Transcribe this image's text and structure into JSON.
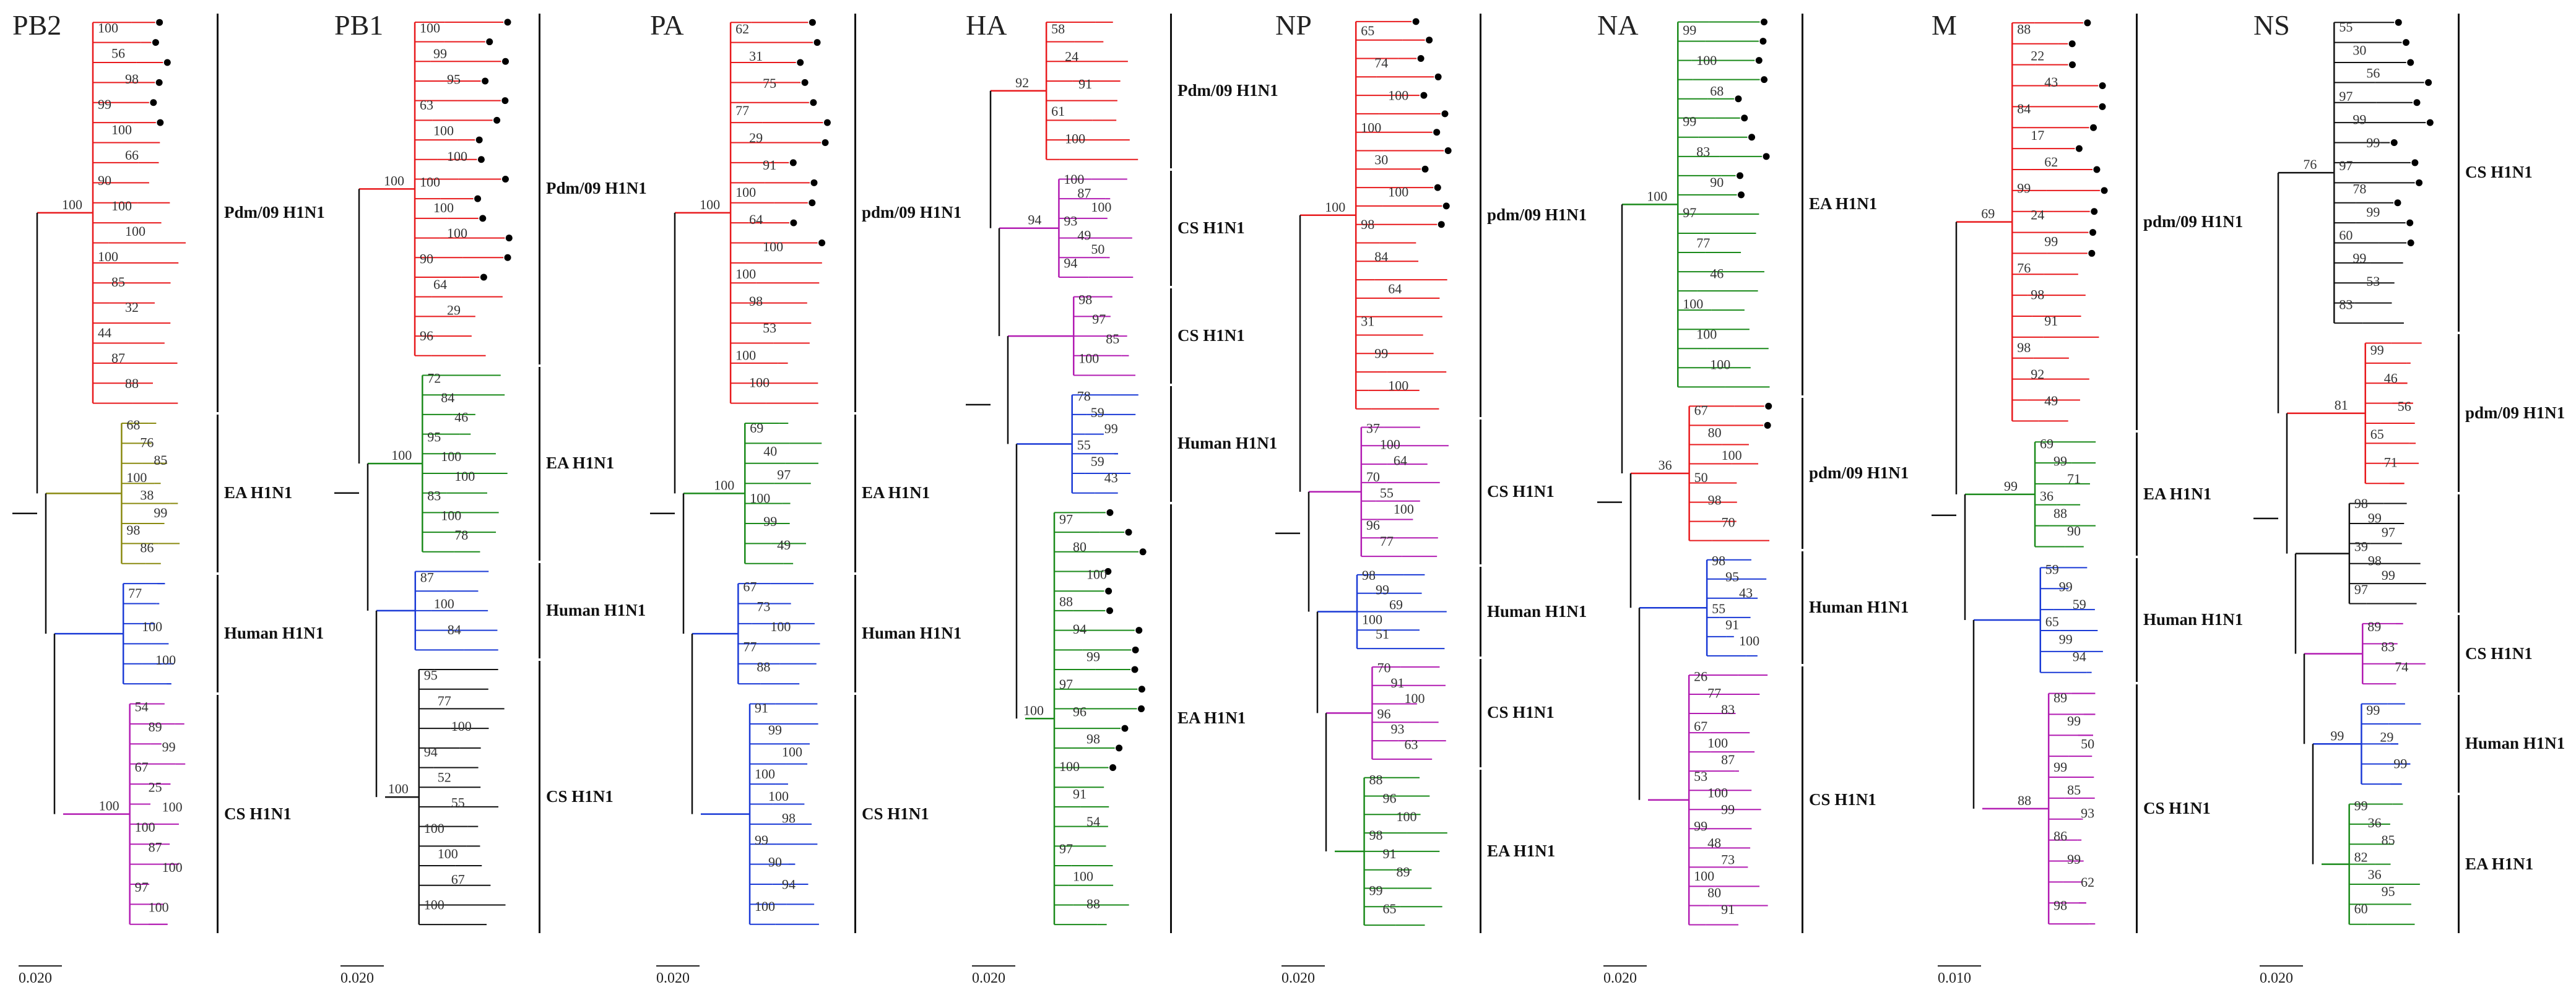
{
  "colors": {
    "pdm": "#e8191c",
    "ea": "#1a8a1a",
    "human": "#1a3ad6",
    "cs": "#b21cb2",
    "ea_alt": "#8a8a10",
    "base": "#111111",
    "tip": "#000000"
  },
  "panels": [
    {
      "gene": "PB2",
      "scale": "0.020",
      "clades": [
        {
          "key": "pdm",
          "label": "Pdm/09 H1N1",
          "tips": 20,
          "marked": 6,
          "boot": [
            "100",
            "56",
            "98",
            "99",
            "100",
            "66",
            "90",
            "100",
            "100",
            "100",
            "85",
            "32",
            "44",
            "87",
            "88"
          ],
          "root_boot": "100"
        },
        {
          "key": "ea_alt",
          "label": "EA H1N1",
          "tips": 8,
          "marked": 0,
          "boot": [
            "68",
            "76",
            "85",
            "100",
            "38",
            "99",
            "98",
            "86"
          ],
          "root_boot": ""
        },
        {
          "key": "human",
          "label": "Human H1N1",
          "tips": 6,
          "marked": 0,
          "boot": [
            "77",
            "100",
            "100"
          ],
          "root_boot": ""
        },
        {
          "key": "cs",
          "label": "CS H1N1",
          "tips": 12,
          "marked": 0,
          "boot": [
            "54",
            "89",
            "99",
            "67",
            "25",
            "100",
            "100",
            "87",
            "100",
            "97",
            "100"
          ],
          "root_boot": "100"
        }
      ]
    },
    {
      "gene": "PB1",
      "scale": "0.020",
      "clades": [
        {
          "key": "pdm",
          "label": "Pdm/09 H1N1",
          "tips": 18,
          "marked": 14,
          "boot": [
            "100",
            "99",
            "95",
            "63",
            "100",
            "100",
            "100",
            "100",
            "100",
            "90",
            "64",
            "29",
            "96"
          ],
          "root_boot": "100"
        },
        {
          "key": "ea",
          "label": "EA H1N1",
          "tips": 10,
          "marked": 0,
          "boot": [
            "72",
            "84",
            "46",
            "95",
            "100",
            "100",
            "83",
            "100",
            "78"
          ],
          "root_boot": "100"
        },
        {
          "key": "human",
          "label": "Human H1N1",
          "tips": 5,
          "marked": 0,
          "boot": [
            "87",
            "100",
            "84"
          ],
          "root_boot": ""
        },
        {
          "key": "base",
          "label": "CS H1N1",
          "tips": 14,
          "marked": 0,
          "boot": [
            "95",
            "77",
            "100",
            "94",
            "52",
            "55",
            "100",
            "100",
            "67",
            "100"
          ],
          "root_boot": "100"
        }
      ]
    },
    {
      "gene": "PA",
      "scale": "0.020",
      "clades": [
        {
          "key": "pdm",
          "label": "pdm/09 H1N1",
          "tips": 20,
          "marked": 12,
          "boot": [
            "62",
            "31",
            "75",
            "77",
            "29",
            "91",
            "100",
            "64",
            "100",
            "100",
            "98",
            "53",
            "100",
            "100"
          ],
          "root_boot": "100"
        },
        {
          "key": "ea",
          "label": "EA H1N1",
          "tips": 8,
          "marked": 0,
          "boot": [
            "69",
            "40",
            "97",
            "100",
            "99",
            "49"
          ],
          "root_boot": "100"
        },
        {
          "key": "human",
          "label": "Human H1N1",
          "tips": 6,
          "marked": 0,
          "boot": [
            "67",
            "73",
            "100",
            "77",
            "88"
          ],
          "root_boot": ""
        },
        {
          "key": "human",
          "label": "CS H1N1",
          "tips": 12,
          "marked": 0,
          "boot": [
            "91",
            "99",
            "100",
            "100",
            "100",
            "98",
            "99",
            "90",
            "94",
            "100"
          ],
          "root_boot": ""
        }
      ]
    },
    {
      "gene": "HA",
      "scale": "0.020",
      "clades": [
        {
          "key": "pdm",
          "label": "Pdm/09 H1N1",
          "tips": 8,
          "marked": 0,
          "boot": [
            "58",
            "24",
            "91",
            "61",
            "100"
          ],
          "root_boot": "92"
        },
        {
          "key": "cs",
          "label": "CS H1N1",
          "tips": 6,
          "marked": 0,
          "boot": [
            "100",
            "87",
            "100",
            "93",
            "49",
            "50",
            "94"
          ],
          "root_boot": "94"
        },
        {
          "key": "cs",
          "label": "CS H1N1",
          "tips": 5,
          "marked": 0,
          "boot": [
            "98",
            "97",
            "85",
            "100"
          ],
          "root_boot": ""
        },
        {
          "key": "human",
          "label": "Human H1N1",
          "tips": 6,
          "marked": 0,
          "boot": [
            "78",
            "59",
            "99",
            "55",
            "59",
            "43"
          ],
          "root_boot": ""
        },
        {
          "key": "ea",
          "label": "EA H1N1",
          "tips": 22,
          "marked": 14,
          "boot": [
            "97",
            "80",
            "100",
            "88",
            "94",
            "99",
            "97",
            "96",
            "98",
            "100",
            "91",
            "54",
            "97",
            "100",
            "88"
          ],
          "root_boot": "100"
        }
      ]
    },
    {
      "gene": "NP",
      "scale": "0.020",
      "clades": [
        {
          "key": "pdm",
          "label": "pdm/09 H1N1",
          "tips": 22,
          "marked": 12,
          "boot": [
            "65",
            "74",
            "100",
            "100",
            "30",
            "100",
            "98",
            "84",
            "64",
            "31",
            "99",
            "100"
          ],
          "root_boot": "100"
        },
        {
          "key": "cs",
          "label": "CS H1N1",
          "tips": 8,
          "marked": 0,
          "boot": [
            "37",
            "100",
            "64",
            "70",
            "55",
            "100",
            "96",
            "77"
          ],
          "root_boot": ""
        },
        {
          "key": "human",
          "label": "Human H1N1",
          "tips": 5,
          "marked": 0,
          "boot": [
            "98",
            "99",
            "69",
            "100",
            "51"
          ],
          "root_boot": ""
        },
        {
          "key": "cs",
          "label": "CS H1N1",
          "tips": 6,
          "marked": 0,
          "boot": [
            "70",
            "91",
            "100",
            "96",
            "93",
            "63"
          ],
          "root_boot": ""
        },
        {
          "key": "ea",
          "label": "EA H1N1",
          "tips": 9,
          "marked": 0,
          "boot": [
            "88",
            "96",
            "100",
            "98",
            "91",
            "89",
            "99",
            "65"
          ],
          "root_boot": ""
        }
      ]
    },
    {
      "gene": "NA",
      "scale": "0.020",
      "clades": [
        {
          "key": "ea",
          "label": "EA H1N1",
          "tips": 20,
          "marked": 10,
          "boot": [
            "99",
            "100",
            "68",
            "99",
            "83",
            "90",
            "97",
            "77",
            "46",
            "100",
            "100",
            "100"
          ],
          "root_boot": "100"
        },
        {
          "key": "pdm",
          "label": "pdm/09 H1N1",
          "tips": 8,
          "marked": 2,
          "boot": [
            "67",
            "80",
            "100",
            "50",
            "98",
            "70"
          ],
          "root_boot": "36"
        },
        {
          "key": "human",
          "label": "Human H1N1",
          "tips": 6,
          "marked": 0,
          "boot": [
            "98",
            "95",
            "43",
            "55",
            "91",
            "100"
          ],
          "root_boot": ""
        },
        {
          "key": "cs",
          "label": "CS H1N1",
          "tips": 14,
          "marked": 0,
          "boot": [
            "26",
            "77",
            "83",
            "67",
            "100",
            "87",
            "53",
            "100",
            "99",
            "99",
            "48",
            "73",
            "100",
            "80",
            "91"
          ],
          "root_boot": ""
        }
      ]
    },
    {
      "gene": "M",
      "scale": "0.010",
      "clades": [
        {
          "key": "pdm",
          "label": "pdm/09 H1N1",
          "tips": 20,
          "marked": 12,
          "boot": [
            "88",
            "22",
            "43",
            "84",
            "17",
            "62",
            "99",
            "24",
            "99",
            "76",
            "98",
            "91",
            "98",
            "92",
            "49"
          ],
          "root_boot": "69"
        },
        {
          "key": "ea",
          "label": "EA H1N1",
          "tips": 6,
          "marked": 0,
          "boot": [
            "69",
            "99",
            "71",
            "36",
            "88",
            "90"
          ],
          "root_boot": "99"
        },
        {
          "key": "human",
          "label": "Human H1N1",
          "tips": 6,
          "marked": 0,
          "boot": [
            "59",
            "99",
            "59",
            "65",
            "99",
            "94"
          ],
          "root_boot": ""
        },
        {
          "key": "cs",
          "label": "CS H1N1",
          "tips": 12,
          "marked": 0,
          "boot": [
            "89",
            "99",
            "50",
            "99",
            "85",
            "93",
            "86",
            "99",
            "62",
            "98"
          ],
          "root_boot": "88"
        }
      ]
    },
    {
      "gene": "NS",
      "scale": "0.020",
      "clades": [
        {
          "key": "base",
          "label": "CS H1N1",
          "tips": 16,
          "marked": 12,
          "boot": [
            "55",
            "30",
            "56",
            "97",
            "99",
            "99",
            "97",
            "78",
            "99",
            "60",
            "99",
            "53",
            "83"
          ],
          "root_boot": "76"
        },
        {
          "key": "pdm",
          "label": "pdm/09 H1N1",
          "tips": 8,
          "marked": 0,
          "boot": [
            "99",
            "46",
            "56",
            "65",
            "71"
          ],
          "root_boot": "81"
        },
        {
          "key": "base",
          "label": "",
          "tips": 6,
          "marked": 0,
          "boot": [
            "98",
            "99",
            "97",
            "39",
            "98",
            "99",
            "97"
          ],
          "root_boot": ""
        },
        {
          "key": "cs",
          "label": "CS H1N1",
          "tips": 4,
          "marked": 0,
          "boot": [
            "89",
            "83",
            "74"
          ],
          "root_boot": ""
        },
        {
          "key": "human",
          "label": "Human H1N1",
          "tips": 5,
          "marked": 0,
          "boot": [
            "99",
            "29",
            "99"
          ],
          "root_boot": "99"
        },
        {
          "key": "ea",
          "label": "EA H1N1",
          "tips": 7,
          "marked": 0,
          "boot": [
            "99",
            "36",
            "85",
            "82",
            "36",
            "95",
            "60"
          ],
          "root_boot": ""
        }
      ]
    }
  ]
}
